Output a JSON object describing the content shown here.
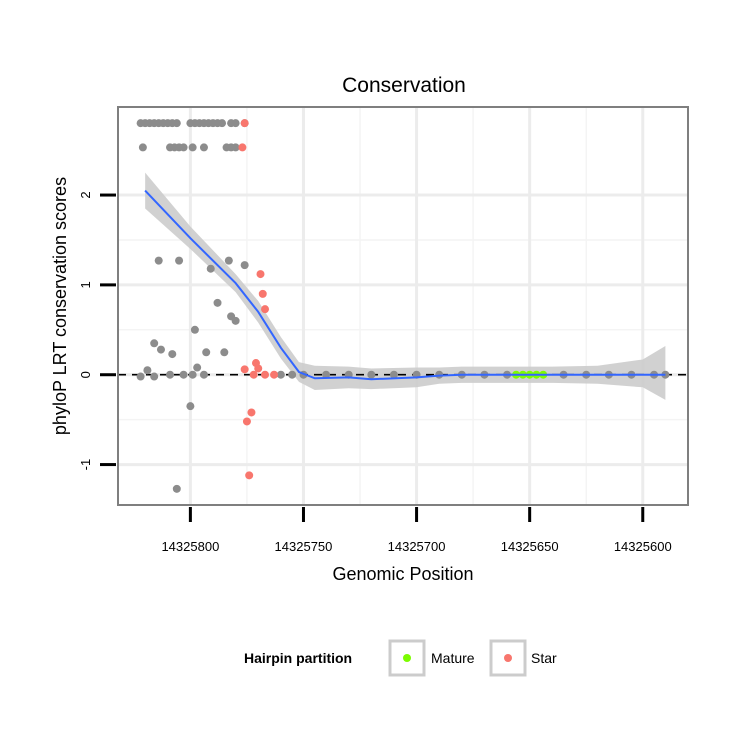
{
  "chart_data": {
    "type": "scatter",
    "title": "Conservation",
    "xlabel": "Genomic Position",
    "ylabel": "phyloP LRT conservation scores",
    "x_reversed": true,
    "xlim": [
      14325832,
      14325580
    ],
    "ylim": [
      -1.45,
      2.98
    ],
    "x_ticks": [
      14325800,
      14325750,
      14325700,
      14325650,
      14325600
    ],
    "x_tick_labels": [
      "14325800",
      "14325750",
      "14325700",
      "14325650",
      "14325600"
    ],
    "y_ticks": [
      -1,
      0,
      1,
      2
    ],
    "y_tick_labels": [
      "-1",
      "0",
      "1",
      "2"
    ],
    "reference_line_y": 0,
    "grid": true,
    "legend": {
      "title": "Hairpin partition",
      "position": "bottom",
      "entries": [
        {
          "label": "Mature",
          "color": "#7cfc00"
        },
        {
          "label": "Star",
          "color": "#f8766d"
        }
      ]
    },
    "colors": {
      "other": "#8c8c8c",
      "mature": "#7cfc00",
      "star": "#f8766d",
      "smooth_line": "#3366ff",
      "confidence_band": "#cccccc"
    },
    "series": [
      {
        "name": "Other",
        "color": "#8c8c8c",
        "points": [
          [
            14325822,
            2.8
          ],
          [
            14325820,
            2.8
          ],
          [
            14325818,
            2.8
          ],
          [
            14325816,
            2.8
          ],
          [
            14325814,
            2.8
          ],
          [
            14325812,
            2.8
          ],
          [
            14325810,
            2.8
          ],
          [
            14325808,
            2.8
          ],
          [
            14325806,
            2.8
          ],
          [
            14325800,
            2.8
          ],
          [
            14325798,
            2.8
          ],
          [
            14325796,
            2.8
          ],
          [
            14325794,
            2.8
          ],
          [
            14325792,
            2.8
          ],
          [
            14325790,
            2.8
          ],
          [
            14325788,
            2.8
          ],
          [
            14325786,
            2.8
          ],
          [
            14325782,
            2.8
          ],
          [
            14325780,
            2.8
          ],
          [
            14325776,
            2.8
          ],
          [
            14325821,
            2.53
          ],
          [
            14325809,
            2.53
          ],
          [
            14325807,
            2.53
          ],
          [
            14325805,
            2.53
          ],
          [
            14325803,
            2.53
          ],
          [
            14325799,
            2.53
          ],
          [
            14325794,
            2.53
          ],
          [
            14325784,
            2.53
          ],
          [
            14325782,
            2.53
          ],
          [
            14325780,
            2.53
          ],
          [
            14325814,
            1.27
          ],
          [
            14325805,
            1.27
          ],
          [
            14325783,
            1.27
          ],
          [
            14325791,
            1.18
          ],
          [
            14325776,
            1.22
          ],
          [
            14325788,
            0.8
          ],
          [
            14325782,
            0.65
          ],
          [
            14325780,
            0.6
          ],
          [
            14325798,
            0.5
          ],
          [
            14325816,
            0.35
          ],
          [
            14325813,
            0.28
          ],
          [
            14325793,
            0.25
          ],
          [
            14325808,
            0.23
          ],
          [
            14325785,
            0.25
          ],
          [
            14325797,
            0.08
          ],
          [
            14325819,
            0.05
          ],
          [
            14325809,
            0.0
          ],
          [
            14325803,
            0.0
          ],
          [
            14325799,
            0.0
          ],
          [
            14325794,
            0.0
          ],
          [
            14325822,
            -0.02
          ],
          [
            14325816,
            -0.02
          ],
          [
            14325800,
            -0.35
          ],
          [
            14325806,
            -1.27
          ],
          [
            14325760,
            0.0
          ],
          [
            14325755,
            0.0
          ],
          [
            14325750,
            0.0
          ],
          [
            14325740,
            0.0
          ],
          [
            14325730,
            0.0
          ],
          [
            14325720,
            0.0
          ],
          [
            14325710,
            0.0
          ],
          [
            14325700,
            0.0
          ],
          [
            14325690,
            0.0
          ],
          [
            14325680,
            0.0
          ],
          [
            14325670,
            0.0
          ],
          [
            14325660,
            0.0
          ],
          [
            14325635,
            0.0
          ],
          [
            14325625,
            0.0
          ],
          [
            14325615,
            0.0
          ],
          [
            14325605,
            0.0
          ],
          [
            14325595,
            0.0
          ],
          [
            14325590,
            0.0
          ]
        ]
      },
      {
        "name": "Mature",
        "color": "#7cfc00",
        "points": [
          [
            14325656,
            0.0
          ],
          [
            14325653,
            0.0
          ],
          [
            14325650,
            0.0
          ],
          [
            14325647,
            0.0
          ],
          [
            14325644,
            0.0
          ]
        ]
      },
      {
        "name": "Star",
        "color": "#f8766d",
        "points": [
          [
            14325776,
            2.8
          ],
          [
            14325777,
            2.53
          ],
          [
            14325769,
            1.12
          ],
          [
            14325768,
            0.9
          ],
          [
            14325767,
            0.73
          ],
          [
            14325771,
            0.13
          ],
          [
            14325770,
            0.07
          ],
          [
            14325776,
            0.06
          ],
          [
            14325772,
            0.0
          ],
          [
            14325767,
            0.0
          ],
          [
            14325763,
            0.0
          ],
          [
            14325773,
            -0.42
          ],
          [
            14325775,
            -0.52
          ],
          [
            14325774,
            -1.12
          ]
        ]
      }
    ],
    "smooth": {
      "x": [
        14325820,
        14325800,
        14325780,
        14325770,
        14325760,
        14325752,
        14325745,
        14325730,
        14325720,
        14325700,
        14325690,
        14325680,
        14325660,
        14325640,
        14325620,
        14325600,
        14325590
      ],
      "y": [
        2.05,
        1.52,
        1.02,
        0.7,
        0.3,
        0.03,
        -0.04,
        -0.03,
        -0.05,
        -0.03,
        -0.01,
        0.0,
        0.0,
        0.0,
        0.0,
        0.0,
        0.0
      ],
      "lower": [
        1.85,
        1.4,
        0.92,
        0.58,
        0.18,
        -0.08,
        -0.17,
        -0.15,
        -0.16,
        -0.14,
        -0.1,
        -0.09,
        -0.09,
        -0.09,
        -0.1,
        -0.14,
        -0.28
      ],
      "upper": [
        2.25,
        1.65,
        1.12,
        0.82,
        0.42,
        0.14,
        0.1,
        0.09,
        0.07,
        0.08,
        0.08,
        0.09,
        0.09,
        0.09,
        0.1,
        0.17,
        0.32
      ]
    }
  }
}
